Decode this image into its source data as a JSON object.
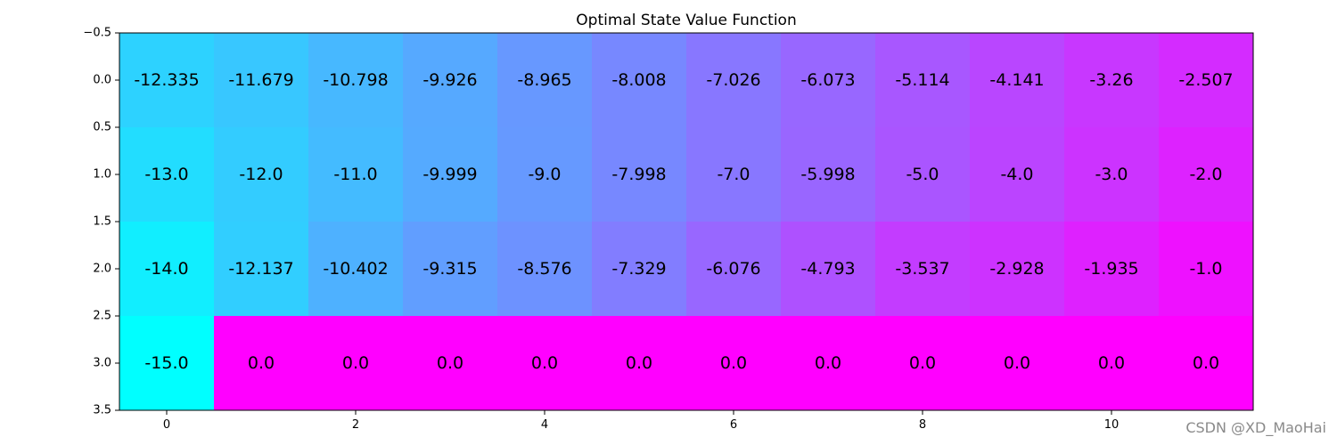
{
  "chart_data": {
    "type": "heatmap",
    "title": "Optimal State Value Function",
    "xlabel": "",
    "ylabel": "",
    "colormap": "cool",
    "color_range": [
      -15.0,
      0.0
    ],
    "n_rows": 4,
    "n_cols": 12,
    "xlim": [
      -0.5,
      11.5
    ],
    "ylim": [
      3.5,
      -0.5
    ],
    "x_ticks": [
      0,
      2,
      4,
      6,
      8,
      10
    ],
    "x_tick_labels": [
      "0",
      "2",
      "4",
      "6",
      "8",
      "10"
    ],
    "y_ticks": [
      -0.5,
      0.0,
      0.5,
      1.0,
      1.5,
      2.0,
      2.5,
      3.0,
      3.5
    ],
    "y_tick_labels": [
      "−0.5",
      "0.0",
      "0.5",
      "1.0",
      "1.5",
      "2.0",
      "2.5",
      "3.0",
      "3.5"
    ],
    "values": [
      [
        -12.335,
        -11.679,
        -10.798,
        -9.926,
        -8.965,
        -8.008,
        -7.026,
        -6.073,
        -5.114,
        -4.141,
        -3.26,
        -2.507
      ],
      [
        -13.0,
        -12.0,
        -11.0,
        -9.999,
        -9.0,
        -7.998,
        -7.0,
        -5.998,
        -5.0,
        -4.0,
        -3.0,
        -2.0
      ],
      [
        -14.0,
        -12.137,
        -10.402,
        -9.315,
        -8.576,
        -7.329,
        -6.076,
        -4.793,
        -3.537,
        -2.928,
        -1.935,
        -1.0
      ],
      [
        -15.0,
        0.0,
        0.0,
        0.0,
        0.0,
        0.0,
        0.0,
        0.0,
        0.0,
        0.0,
        0.0,
        0.0
      ]
    ],
    "cell_labels": [
      [
        "-12.335",
        "-11.679",
        "-10.798",
        "-9.926",
        "-8.965",
        "-8.008",
        "-7.026",
        "-6.073",
        "-5.114",
        "-4.141",
        "-3.26",
        "-2.507"
      ],
      [
        "-13.0",
        "-12.0",
        "-11.0",
        "-9.999",
        "-9.0",
        "-7.998",
        "-7.0",
        "-5.998",
        "-5.0",
        "-4.0",
        "-3.0",
        "-2.0"
      ],
      [
        "-14.0",
        "-12.137",
        "-10.402",
        "-9.315",
        "-8.576",
        "-7.329",
        "-6.076",
        "-4.793",
        "-3.537",
        "-2.928",
        "-1.935",
        "-1.0"
      ],
      [
        "-15.0",
        "0.0",
        "0.0",
        "0.0",
        "0.0",
        "0.0",
        "0.0",
        "0.0",
        "0.0",
        "0.0",
        "0.0",
        "0.0"
      ]
    ],
    "grid": false,
    "legend": "none"
  },
  "watermark": "CSDN @XD_MaoHai"
}
